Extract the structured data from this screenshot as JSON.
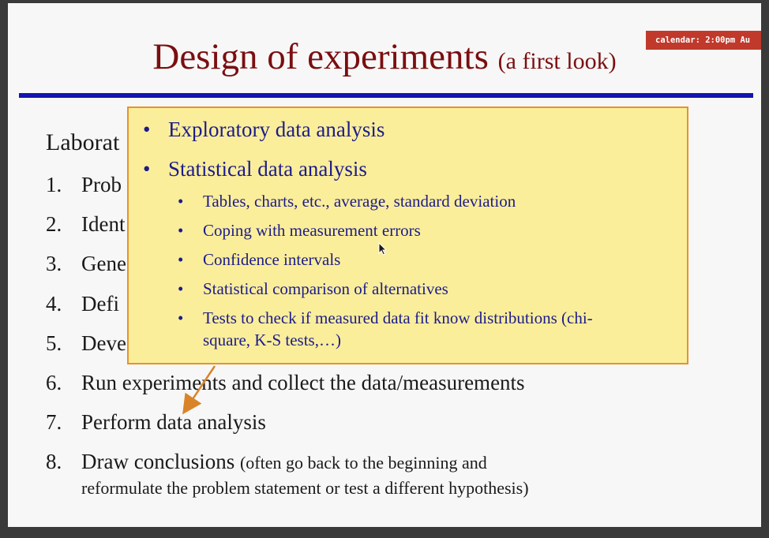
{
  "slide": {
    "title": "Design of experiments",
    "title_sub": "(a first look)",
    "calendar_badge": "calendar: 2:00pm  Au",
    "lab_heading": "Laborat",
    "steps": [
      {
        "num": "1.",
        "text": "Prob"
      },
      {
        "num": "2.",
        "text": "Ident"
      },
      {
        "num": "3.",
        "text": "Gene"
      },
      {
        "num": "4.",
        "text": "Defi"
      },
      {
        "num": "5.",
        "text": "Deve"
      },
      {
        "num": "6.",
        "text": "Run experiments and collect the data/measurements"
      },
      {
        "num": "7.",
        "text": "Perform data analysis"
      },
      {
        "num": "8.",
        "text": "Draw conclusions",
        "note": "(often go back to the beginning and",
        "cont": "reformulate the problem statement or test a different hypothesis)"
      }
    ]
  },
  "callout": {
    "items": [
      {
        "text": "Exploratory data analysis"
      },
      {
        "text": "Statistical data analysis"
      }
    ],
    "subitems": [
      {
        "text": "Tables, charts, etc., average, standard deviation"
      },
      {
        "text": "Coping with measurement errors"
      },
      {
        "text": "Confidence intervals"
      },
      {
        "text": "Statistical comparison of alternatives"
      },
      {
        "text": "Tests to check if measured data fit know distributions (chi-",
        "cont": "square, K-S tests,…)"
      }
    ]
  },
  "colors": {
    "title": "#7a0e10",
    "rule": "#1414b0",
    "callout_bg": "#fbee9b",
    "callout_border": "#e6922e",
    "callout_text": "#1c1c8a",
    "badge_bg": "#c0392b"
  }
}
